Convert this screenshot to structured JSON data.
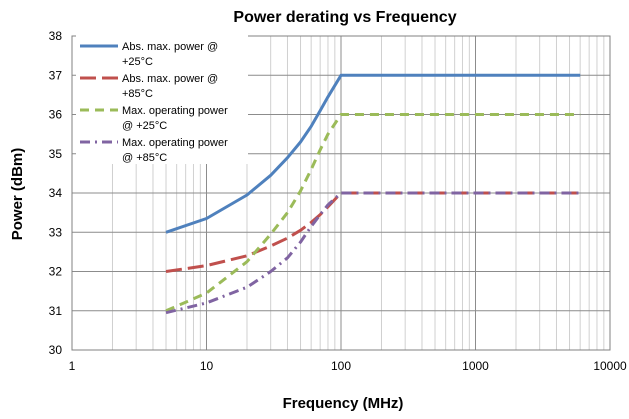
{
  "chart_data": {
    "type": "line",
    "title": "Power derating vs Frequency",
    "xlabel": "Frequency (MHz)",
    "ylabel": "Power (dBm)",
    "x_scale": "log",
    "xlim": [
      1,
      10000
    ],
    "ylim": [
      30,
      38
    ],
    "x_ticks": [
      "1",
      "10",
      "100",
      "1000",
      "10000"
    ],
    "y_ticks": [
      "30",
      "31",
      "32",
      "33",
      "34",
      "35",
      "36",
      "37",
      "38"
    ],
    "grid": true,
    "legend_position": "top-left",
    "series": [
      {
        "name": "Abs. max. power @ +25°C",
        "legend_lines": [
          "Abs. max. power @",
          "+25°C"
        ],
        "color": "#4F81BD",
        "dash": "solid",
        "x": [
          5,
          10,
          20,
          30,
          40,
          50,
          60,
          70,
          80,
          100,
          1000,
          6000
        ],
        "y": [
          33.0,
          33.35,
          33.95,
          34.45,
          34.9,
          35.3,
          35.7,
          36.1,
          36.45,
          37.0,
          37.0,
          37.0
        ]
      },
      {
        "name": "Abs. max. power @ +85°C",
        "legend_lines": [
          "Abs. max. power @",
          "+85°C"
        ],
        "color": "#C0504D",
        "dash": "longdash",
        "x": [
          5,
          10,
          20,
          30,
          40,
          50,
          60,
          70,
          80,
          100,
          1000,
          6000
        ],
        "y": [
          32.0,
          32.15,
          32.4,
          32.65,
          32.85,
          33.05,
          33.25,
          33.45,
          33.65,
          34.0,
          34.0,
          34.0
        ]
      },
      {
        "name": "Max. operating power @ +25°C",
        "legend_lines": [
          "Max. operating power",
          "@ +25°C"
        ],
        "color": "#9BBB59",
        "dash": "dash",
        "x": [
          5,
          10,
          20,
          30,
          40,
          50,
          60,
          70,
          80,
          100,
          1000,
          6000
        ],
        "y": [
          31.0,
          31.45,
          32.25,
          32.95,
          33.5,
          34.05,
          34.6,
          35.1,
          35.5,
          36.0,
          36.0,
          36.0
        ]
      },
      {
        "name": "Max. operating power @ +85°C",
        "legend_lines": [
          "Max. operating power",
          "@ +85°C"
        ],
        "color": "#8064A2",
        "dash": "dashdot",
        "x": [
          5,
          10,
          20,
          30,
          40,
          50,
          60,
          70,
          80,
          100,
          1000,
          6000
        ],
        "y": [
          30.95,
          31.2,
          31.6,
          32.0,
          32.35,
          32.75,
          33.15,
          33.45,
          33.7,
          34.0,
          34.0,
          34.0
        ]
      }
    ]
  }
}
